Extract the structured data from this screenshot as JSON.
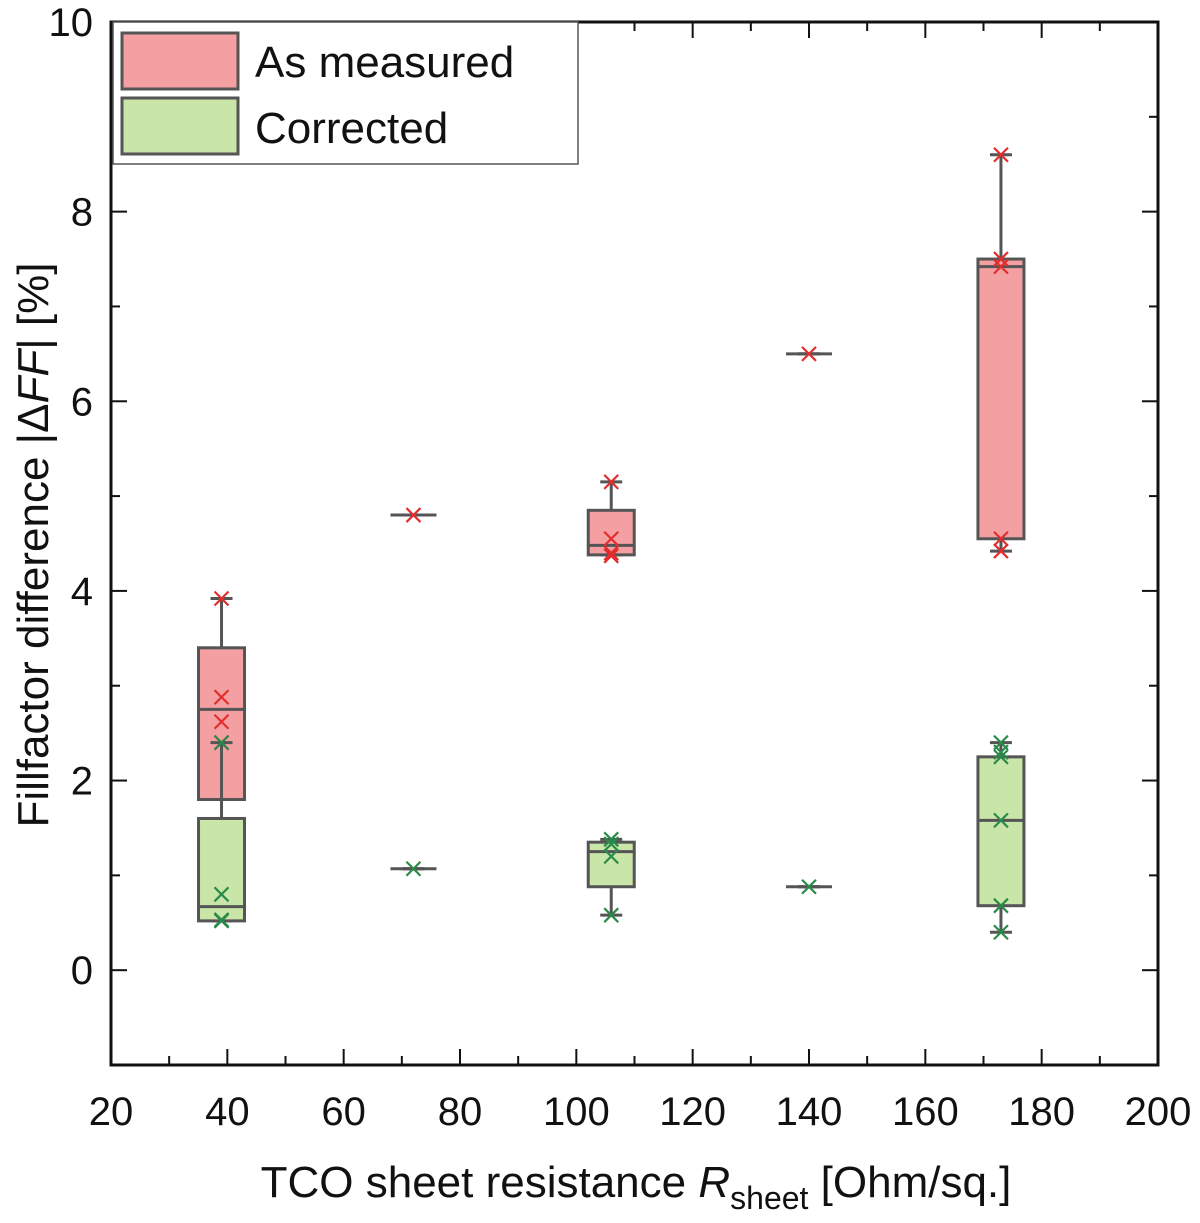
{
  "chart_data": {
    "type": "box",
    "xlabel": {
      "prefix": "TCO sheet resistance ",
      "italic": "R",
      "sub": "sheet",
      "suffix": " [Ohm/sq.]"
    },
    "ylabel": {
      "prefix": "Fillfactor difference |Δ",
      "italic": "FF",
      "suffix": "| [%]"
    },
    "xlim": [
      20,
      200
    ],
    "ylim": [
      -1,
      10
    ],
    "xticks": [
      "20",
      "40",
      "60",
      "80",
      "100",
      "120",
      "140",
      "160",
      "180",
      "200"
    ],
    "yticks": [
      "0",
      "2",
      "4",
      "6",
      "8",
      "10"
    ],
    "legend": {
      "position": "top-left"
    },
    "colors": {
      "measured_fill": "#f4a0a2",
      "measured_marker": "#e32d2d",
      "corrected_fill": "#c9e5a8",
      "corrected_marker": "#2a8a4a",
      "box_stroke": "#555555"
    },
    "series": [
      {
        "name": "As measured",
        "groups": [
          {
            "x": 39,
            "whisker_low": 1.8,
            "q1": 1.8,
            "median": 2.75,
            "q3": 3.4,
            "whisker_high": 3.92,
            "points": [
              3.92,
              2.88,
              2.62,
              2.4
            ]
          },
          {
            "x": 72,
            "whisker_low": 4.8,
            "q1": 4.8,
            "median": 4.8,
            "q3": 4.8,
            "whisker_high": 4.8,
            "points": [
              4.8
            ]
          },
          {
            "x": 106,
            "whisker_low": 4.38,
            "q1": 4.38,
            "median": 4.48,
            "q3": 4.85,
            "whisker_high": 5.15,
            "points": [
              5.15,
              4.55,
              4.4,
              4.37
            ]
          },
          {
            "x": 140,
            "whisker_low": 6.5,
            "q1": 6.5,
            "median": 6.5,
            "q3": 6.5,
            "whisker_high": 6.5,
            "points": [
              6.5
            ]
          },
          {
            "x": 173,
            "whisker_low": 4.42,
            "q1": 4.55,
            "median": 7.42,
            "q3": 7.5,
            "whisker_high": 8.6,
            "points": [
              8.6,
              7.5,
              7.42,
              4.55,
              4.42
            ]
          }
        ]
      },
      {
        "name": "Corrected",
        "groups": [
          {
            "x": 39,
            "whisker_low": 0.52,
            "q1": 0.52,
            "median": 0.67,
            "q3": 1.6,
            "whisker_high": 2.4,
            "points": [
              2.4,
              0.8,
              0.53,
              0.52
            ]
          },
          {
            "x": 72,
            "whisker_low": 1.07,
            "q1": 1.07,
            "median": 1.07,
            "q3": 1.07,
            "whisker_high": 1.07,
            "points": [
              1.07
            ]
          },
          {
            "x": 106,
            "whisker_low": 0.58,
            "q1": 0.88,
            "median": 1.25,
            "q3": 1.35,
            "whisker_high": 1.38,
            "points": [
              1.38,
              1.33,
              1.2,
              0.58
            ]
          },
          {
            "x": 140,
            "whisker_low": 0.88,
            "q1": 0.88,
            "median": 0.88,
            "q3": 0.88,
            "whisker_high": 0.88,
            "points": [
              0.88
            ]
          },
          {
            "x": 173,
            "whisker_low": 0.4,
            "q1": 0.68,
            "median": 1.58,
            "q3": 2.25,
            "whisker_high": 2.4,
            "points": [
              2.4,
              2.3,
              2.25,
              1.58,
              0.68,
              0.4
            ]
          }
        ]
      }
    ]
  }
}
